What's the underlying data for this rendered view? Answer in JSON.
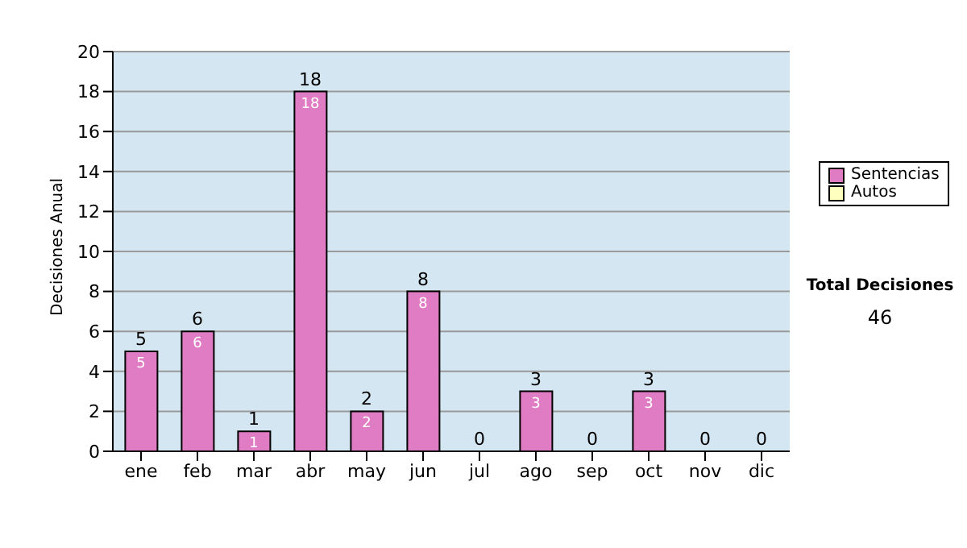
{
  "chart_data": {
    "type": "bar",
    "ylabel": "Decisiones Anual",
    "categories": [
      "ene",
      "feb",
      "mar",
      "abr",
      "may",
      "jun",
      "jul",
      "ago",
      "sep",
      "oct",
      "nov",
      "dic"
    ],
    "series": [
      {
        "name": "Sentencias",
        "color": "#e07cc4",
        "values": [
          5,
          6,
          1,
          18,
          2,
          8,
          0,
          3,
          0,
          3,
          0,
          0
        ],
        "value_labels": [
          "5",
          "6",
          "1",
          "18",
          "2",
          "8",
          null,
          "3",
          null,
          "3",
          null,
          null
        ]
      },
      {
        "name": "Autos",
        "color": "#ffffc0",
        "values": [
          0,
          0,
          0,
          0,
          0,
          0,
          0,
          0,
          0,
          0,
          0,
          0
        ]
      }
    ],
    "stacked": true,
    "totals": [
      "5",
      "6",
      "1",
      "18",
      "2",
      "8",
      "0",
      "3",
      "0",
      "3",
      "0",
      "0"
    ],
    "ylim": [
      0,
      20
    ],
    "yticks": [
      0,
      2,
      4,
      6,
      8,
      10,
      12,
      14,
      16,
      18,
      20
    ],
    "grid": "y",
    "legend": "right",
    "annotations": [
      "Total Decisiones",
      "46"
    ]
  }
}
